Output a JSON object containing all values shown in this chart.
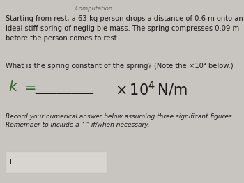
{
  "bg_color": "#c8c4c0",
  "header_text": "Computation",
  "body_text_1": "Starting from rest, a 63-kg person drops a distance of 0.6 m onto an\nideal stiff spring of negligible mass. The spring compresses 0.09 m\nbefore the person comes to rest.",
  "body_text_2": "What is the spring constant of the spring? (Note the ×10⁴ below.)",
  "record_text": "Record your numerical answer below assuming three significant figures.\nRemember to include a \"-\" if/when necessary.",
  "input_box_text": "I",
  "text_color_dark": "#1a1a1a",
  "text_color_green": "#2d6b2d",
  "header_color": "#666666",
  "body_font_size": 7.2,
  "equation_font_size": 15,
  "record_font_size": 6.5,
  "header_font_size": 6.0
}
